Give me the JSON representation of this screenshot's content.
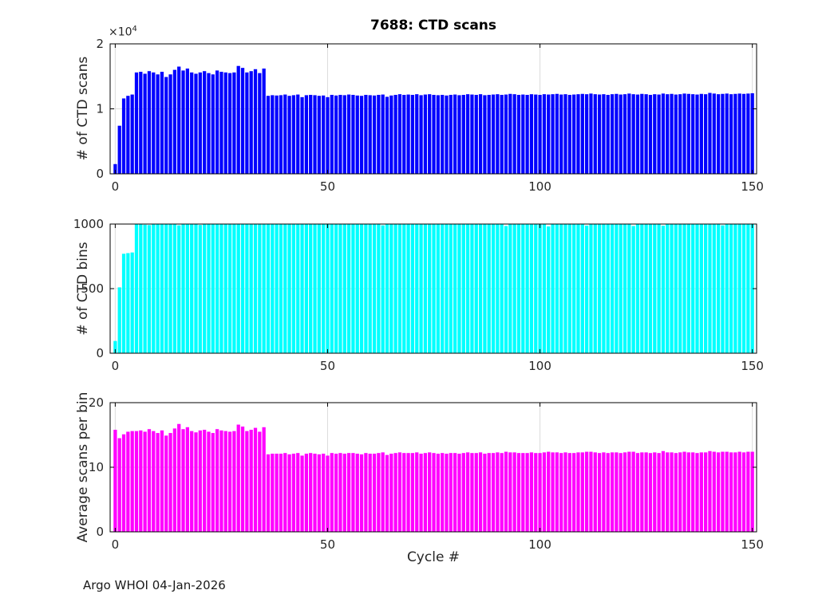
{
  "figure": {
    "footer": "Argo WHOI 04-Jan-2026",
    "background": "#FFFFFF",
    "y_exponent_base": "×10",
    "y_exponent_power": "4"
  },
  "chart_data": [
    {
      "name": "ctd-scans",
      "type": "bar",
      "title": "7688: CTD scans",
      "ylabel": "# of CTD scans",
      "bar_color": "#0000FF",
      "grid": true,
      "ylim": [
        0,
        20000
      ],
      "yticks": [
        0,
        10000,
        20000
      ],
      "ytick_labels": [
        "0",
        "1",
        "2"
      ],
      "y_scale_note": "×10^4",
      "x_first": 0,
      "x_step": 1,
      "xlim": [
        -1.2,
        151
      ],
      "xticks": [
        0,
        50,
        100,
        150
      ],
      "xtick_labels": [
        "0",
        "50",
        "100",
        "150"
      ],
      "values": [
        1500,
        7400,
        11600,
        12000,
        12200,
        15600,
        15700,
        15400,
        15800,
        15600,
        15300,
        15700,
        14900,
        15300,
        16000,
        16500,
        15900,
        16200,
        15600,
        15400,
        15600,
        15800,
        15500,
        15300,
        15900,
        15700,
        15600,
        15500,
        15600,
        16600,
        16300,
        15600,
        15800,
        16100,
        15500,
        16200,
        12000,
        12100,
        12050,
        12100,
        12200,
        12000,
        12100,
        12200,
        11800,
        12100,
        12150,
        12100,
        12000,
        12050,
        11800,
        12150,
        12050,
        12150,
        12100,
        12200,
        12150,
        12050,
        12000,
        12150,
        12100,
        12050,
        12150,
        12200,
        11850,
        12050,
        12150,
        12250,
        12150,
        12200,
        12150,
        12250,
        12100,
        12200,
        12250,
        12150,
        12100,
        12150,
        12050,
        12150,
        12200,
        12100,
        12150,
        12250,
        12200,
        12150,
        12250,
        12100,
        12150,
        12200,
        12250,
        12150,
        12200,
        12300,
        12250,
        12150,
        12200,
        12150,
        12250,
        12200,
        12150,
        12250,
        12200,
        12250,
        12300,
        12200,
        12250,
        12150,
        12200,
        12250,
        12300,
        12250,
        12350,
        12250,
        12200,
        12250,
        12150,
        12250,
        12300,
        12200,
        12250,
        12350,
        12250,
        12200,
        12300,
        12250,
        12150,
        12250,
        12200,
        12350,
        12250,
        12300,
        12200,
        12250,
        12350,
        12300,
        12250,
        12200,
        12300,
        12250,
        12450,
        12350,
        12250,
        12300,
        12350,
        12250,
        12300,
        12350,
        12300,
        12350,
        12400
      ]
    },
    {
      "name": "ctd-bins",
      "type": "bar",
      "ylabel": "# of CTD bins",
      "bar_color": "#00FFFF",
      "grid": true,
      "ylim": [
        0,
        1000
      ],
      "yticks": [
        0,
        500,
        1000
      ],
      "ytick_labels": [
        "0",
        "500",
        "1000"
      ],
      "x_first": 0,
      "x_step": 1,
      "xlim": [
        -1.2,
        151
      ],
      "xticks": [
        0,
        50,
        100,
        150
      ],
      "xtick_labels": [
        "0",
        "50",
        "100",
        "150"
      ],
      "values": [
        95,
        510,
        770,
        775,
        780,
        1000,
        1000,
        995,
        992,
        1000,
        1000,
        1000,
        1000,
        1000,
        1000,
        990,
        1000,
        1000,
        1000,
        1000,
        993,
        1000,
        1000,
        1000,
        1000,
        1000,
        1000,
        1000,
        1000,
        1000,
        1000,
        1000,
        1000,
        1000,
        1000,
        1000,
        1000,
        1000,
        1000,
        1000,
        1000,
        1000,
        1000,
        1000,
        1000,
        1000,
        1000,
        1000,
        1000,
        1000,
        1000,
        1000,
        1000,
        1000,
        1000,
        1000,
        1000,
        1000,
        1000,
        1000,
        1000,
        1000,
        1000,
        990,
        1000,
        1000,
        1000,
        1000,
        1000,
        1000,
        1000,
        1000,
        1000,
        1000,
        1000,
        1000,
        1000,
        1000,
        1000,
        1000,
        1000,
        1000,
        1000,
        1000,
        1000,
        1000,
        1000,
        1000,
        1000,
        1000,
        1000,
        1000,
        985,
        1000,
        1000,
        1000,
        1000,
        1000,
        1000,
        1000,
        1000,
        1000,
        982,
        1000,
        1000,
        1000,
        1000,
        1000,
        1000,
        1000,
        1000,
        988,
        1000,
        1000,
        1000,
        1000,
        1000,
        1000,
        1000,
        1000,
        1000,
        1000,
        985,
        1000,
        1000,
        1000,
        1000,
        1000,
        1000,
        987,
        1000,
        1000,
        1000,
        1000,
        1000,
        1000,
        1000,
        1000,
        1000,
        1000,
        1000,
        1000,
        1000,
        990,
        1000,
        1000,
        1000,
        1000,
        1000,
        1000,
        1000
      ]
    },
    {
      "name": "avg-scans-per-bin",
      "type": "bar",
      "ylabel": "Average scans per bin",
      "xlabel": "Cycle #",
      "bar_color": "#FF00FF",
      "grid": true,
      "ylim": [
        0,
        20
      ],
      "yticks": [
        0,
        10,
        20
      ],
      "ytick_labels": [
        "0",
        "10",
        "20"
      ],
      "x_first": 0,
      "x_step": 1,
      "xlim": [
        -1.2,
        151
      ],
      "xticks": [
        0,
        50,
        100,
        150
      ],
      "xtick_labels": [
        "0",
        "50",
        "100",
        "150"
      ],
      "values": [
        15.8,
        14.5,
        15.1,
        15.5,
        15.6,
        15.6,
        15.7,
        15.5,
        15.9,
        15.6,
        15.3,
        15.7,
        14.9,
        15.3,
        16.0,
        16.7,
        15.9,
        16.2,
        15.6,
        15.4,
        15.7,
        15.8,
        15.5,
        15.3,
        15.9,
        15.7,
        15.6,
        15.5,
        15.6,
        16.6,
        16.3,
        15.6,
        15.8,
        16.1,
        15.5,
        16.2,
        12.0,
        12.1,
        12.1,
        12.1,
        12.2,
        12.0,
        12.1,
        12.2,
        11.8,
        12.1,
        12.2,
        12.1,
        12.0,
        12.1,
        11.8,
        12.2,
        12.1,
        12.2,
        12.1,
        12.2,
        12.2,
        12.1,
        12.0,
        12.2,
        12.1,
        12.1,
        12.2,
        12.3,
        11.9,
        12.1,
        12.2,
        12.3,
        12.2,
        12.2,
        12.2,
        12.3,
        12.1,
        12.2,
        12.3,
        12.2,
        12.1,
        12.2,
        12.1,
        12.2,
        12.2,
        12.1,
        12.2,
        12.3,
        12.2,
        12.2,
        12.3,
        12.1,
        12.2,
        12.2,
        12.3,
        12.2,
        12.4,
        12.3,
        12.3,
        12.2,
        12.2,
        12.2,
        12.3,
        12.2,
        12.2,
        12.3,
        12.4,
        12.3,
        12.3,
        12.2,
        12.3,
        12.2,
        12.2,
        12.3,
        12.3,
        12.4,
        12.4,
        12.3,
        12.2,
        12.3,
        12.2,
        12.3,
        12.3,
        12.2,
        12.3,
        12.4,
        12.4,
        12.2,
        12.3,
        12.3,
        12.2,
        12.3,
        12.2,
        12.5,
        12.3,
        12.3,
        12.2,
        12.3,
        12.4,
        12.3,
        12.3,
        12.2,
        12.3,
        12.3,
        12.5,
        12.4,
        12.3,
        12.4,
        12.4,
        12.3,
        12.3,
        12.4,
        12.3,
        12.4,
        12.4
      ]
    }
  ]
}
